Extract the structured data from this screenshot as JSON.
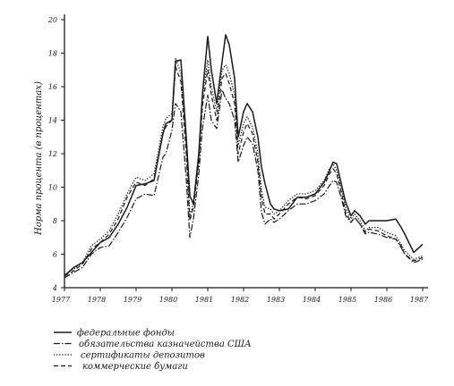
{
  "chart_data": {
    "type": "line",
    "title": "",
    "xlabel": "",
    "ylabel": "Норма процента (в процентах)",
    "xlim": [
      1977,
      1987
    ],
    "ylim": [
      4,
      20
    ],
    "x_ticks": [
      "1977",
      "1978",
      "1979",
      "1980",
      "1981",
      "1982",
      "1983",
      "1984",
      "1985",
      "1986",
      "1987"
    ],
    "y_ticks": [
      "4",
      "6",
      "8",
      "10",
      "12",
      "14",
      "16",
      "18",
      "20"
    ],
    "grid": false,
    "legend_position": "bottom",
    "series": [
      {
        "name": "федеральные фонды",
        "style": "solid",
        "x": [
          1977,
          1977.25,
          1977.5,
          1977.75,
          1978,
          1978.25,
          1978.5,
          1978.75,
          1979,
          1979.25,
          1979.5,
          1979.75,
          1979.83,
          1980,
          1980.1,
          1980.25,
          1980.4,
          1980.5,
          1980.6,
          1980.75,
          1980.85,
          1981,
          1981.1,
          1981.25,
          1981.4,
          1981.5,
          1981.6,
          1981.75,
          1981.85,
          1982,
          1982.1,
          1982.25,
          1982.4,
          1982.5,
          1982.6,
          1982.75,
          1982.85,
          1983,
          1983.25,
          1983.5,
          1983.75,
          1984,
          1984.25,
          1984.4,
          1984.5,
          1984.6,
          1984.75,
          1984.85,
          1985,
          1985.1,
          1985.25,
          1985.4,
          1985.5,
          1985.75,
          1986,
          1986.25,
          1986.4,
          1986.5,
          1986.75,
          1987
        ],
        "values": [
          4.7,
          5.2,
          5.5,
          6.1,
          6.7,
          7.0,
          7.8,
          8.8,
          10.1,
          10.2,
          10.4,
          13.2,
          13.8,
          14.0,
          17.5,
          17.6,
          13.0,
          9.5,
          9.0,
          12.0,
          15.5,
          19.0,
          17.0,
          15.0,
          17.5,
          19.1,
          18.5,
          16.5,
          13.0,
          14.5,
          15.0,
          14.5,
          13.0,
          11.2,
          10.2,
          9.0,
          8.7,
          8.6,
          8.7,
          9.4,
          9.4,
          9.6,
          10.3,
          11.0,
          11.5,
          11.4,
          10.0,
          9.1,
          8.3,
          8.6,
          8.3,
          7.8,
          8.0,
          8.0,
          8.0,
          8.1,
          7.6,
          7.2,
          6.1,
          6.6
        ]
      },
      {
        "name": "обязательства казначейства США",
        "style": "dash-dot",
        "x": [
          1977,
          1977.25,
          1977.5,
          1977.75,
          1978,
          1978.25,
          1978.5,
          1978.75,
          1979,
          1979.25,
          1979.5,
          1979.75,
          1979.83,
          1980,
          1980.1,
          1980.25,
          1980.4,
          1980.5,
          1980.6,
          1980.75,
          1980.85,
          1981,
          1981.1,
          1981.25,
          1981.4,
          1981.5,
          1981.6,
          1981.75,
          1981.85,
          1982,
          1982.1,
          1982.25,
          1982.4,
          1982.5,
          1982.6,
          1982.75,
          1982.85,
          1983,
          1983.25,
          1983.5,
          1983.75,
          1984,
          1984.25,
          1984.4,
          1984.5,
          1984.6,
          1984.75,
          1984.85,
          1985,
          1985.1,
          1985.25,
          1985.4,
          1985.5,
          1985.75,
          1986,
          1986.25,
          1986.4,
          1986.5,
          1986.75,
          1987
        ],
        "values": [
          4.6,
          4.9,
          5.2,
          6.0,
          6.4,
          6.5,
          7.3,
          8.2,
          9.3,
          9.6,
          9.5,
          11.8,
          12.0,
          13.4,
          15.0,
          14.5,
          10.5,
          7.0,
          8.1,
          10.8,
          13.5,
          15.5,
          14.0,
          13.5,
          15.8,
          15.3,
          15.0,
          14.0,
          11.5,
          12.5,
          13.0,
          12.6,
          11.0,
          8.5,
          7.8,
          8.1,
          7.9,
          8.1,
          8.6,
          9.0,
          9.0,
          9.2,
          9.6,
          10.1,
          10.4,
          10.3,
          9.2,
          8.3,
          7.9,
          8.2,
          7.8,
          7.2,
          7.3,
          7.2,
          7.0,
          6.9,
          6.4,
          6.0,
          5.5,
          5.7
        ]
      },
      {
        "name": "сертификаты депозитов",
        "style": "dotted",
        "x": [
          1977,
          1977.25,
          1977.5,
          1977.75,
          1978,
          1978.25,
          1978.5,
          1978.75,
          1979,
          1979.25,
          1979.5,
          1979.75,
          1979.83,
          1980,
          1980.1,
          1980.25,
          1980.4,
          1980.5,
          1980.6,
          1980.75,
          1980.85,
          1981,
          1981.1,
          1981.25,
          1981.4,
          1981.5,
          1981.6,
          1981.75,
          1981.85,
          1982,
          1982.1,
          1982.25,
          1982.4,
          1982.5,
          1982.6,
          1982.75,
          1982.85,
          1983,
          1983.25,
          1983.5,
          1983.75,
          1984,
          1984.25,
          1984.4,
          1984.5,
          1984.6,
          1984.75,
          1984.85,
          1985,
          1985.1,
          1985.25,
          1985.4,
          1985.5,
          1985.75,
          1986,
          1986.25,
          1986.4,
          1986.5,
          1986.75,
          1987
        ],
        "values": [
          4.8,
          5.1,
          5.5,
          6.5,
          6.9,
          7.4,
          8.4,
          9.6,
          10.6,
          10.4,
          10.8,
          13.6,
          14.1,
          14.4,
          17.7,
          16.8,
          12.5,
          8.3,
          9.0,
          11.8,
          15.3,
          17.6,
          16.0,
          14.5,
          17.0,
          17.3,
          16.8,
          15.5,
          12.5,
          13.8,
          14.2,
          13.6,
          12.0,
          9.8,
          8.8,
          8.7,
          8.4,
          8.6,
          9.2,
          9.6,
          9.6,
          9.8,
          10.4,
          11.1,
          11.4,
          11.0,
          9.8,
          8.8,
          8.1,
          8.4,
          8.0,
          7.4,
          7.6,
          7.6,
          7.3,
          7.1,
          6.6,
          6.2,
          5.7,
          5.9
        ]
      },
      {
        "name": "коммерческие бумаги",
        "style": "dashed",
        "x": [
          1977,
          1977.25,
          1977.5,
          1977.75,
          1978,
          1978.25,
          1978.5,
          1978.75,
          1979,
          1979.25,
          1979.5,
          1979.75,
          1979.83,
          1980,
          1980.1,
          1980.25,
          1980.4,
          1980.5,
          1980.6,
          1980.75,
          1980.85,
          1981,
          1981.1,
          1981.25,
          1981.4,
          1981.5,
          1981.6,
          1981.75,
          1981.85,
          1982,
          1982.1,
          1982.25,
          1982.4,
          1982.5,
          1982.6,
          1982.75,
          1982.85,
          1983,
          1983.25,
          1983.5,
          1983.75,
          1984,
          1984.25,
          1984.4,
          1984.5,
          1984.6,
          1984.75,
          1984.85,
          1985,
          1985.1,
          1985.25,
          1985.4,
          1985.5,
          1985.75,
          1986,
          1986.25,
          1986.4,
          1986.5,
          1986.75,
          1987
        ],
        "values": [
          4.7,
          5.0,
          5.4,
          6.3,
          6.7,
          7.2,
          8.1,
          9.4,
          10.3,
          10.1,
          10.5,
          13.2,
          13.6,
          14.0,
          17.2,
          16.3,
          12.0,
          8.0,
          8.8,
          11.5,
          14.8,
          17.0,
          15.5,
          14.0,
          16.5,
          16.8,
          16.2,
          15.0,
          12.0,
          13.3,
          13.8,
          13.2,
          11.5,
          9.4,
          8.4,
          8.4,
          8.1,
          8.4,
          9.0,
          9.4,
          9.3,
          9.5,
          10.1,
          10.8,
          11.1,
          10.8,
          9.5,
          8.5,
          7.9,
          8.2,
          7.8,
          7.3,
          7.5,
          7.4,
          7.1,
          6.9,
          6.5,
          6.0,
          5.6,
          5.8
        ]
      }
    ]
  }
}
